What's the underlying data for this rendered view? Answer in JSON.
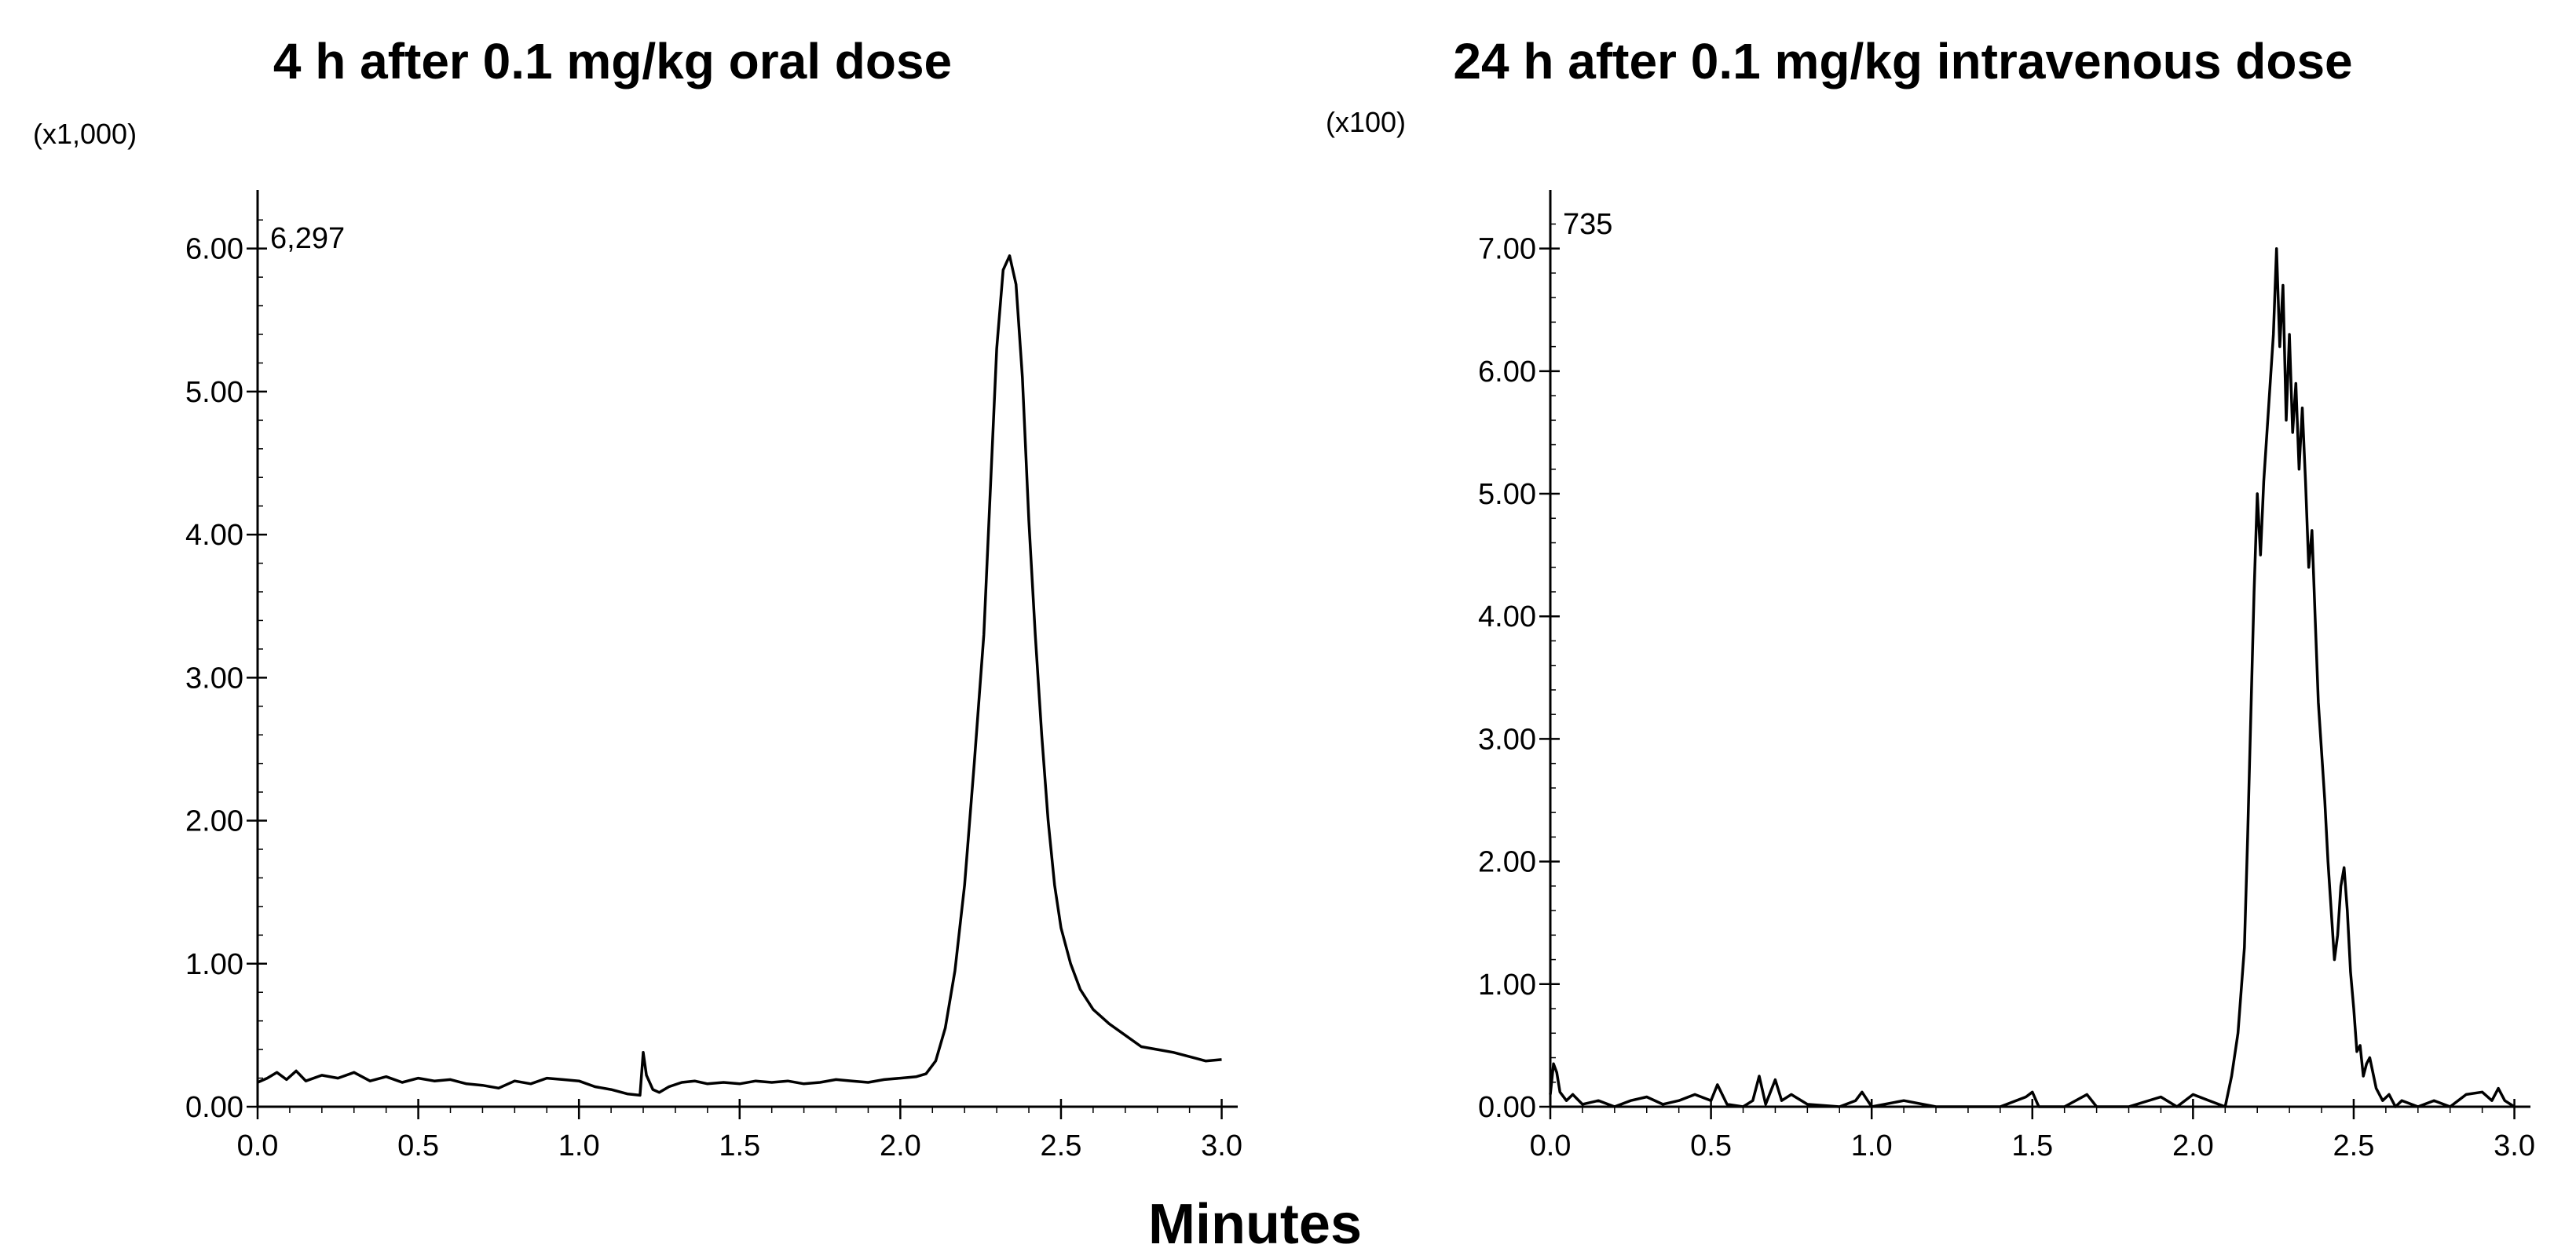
{
  "chart_data": [
    {
      "type": "line",
      "title": "4 h after 0.1 mg/kg oral dose",
      "scale_label": "(x1,000)",
      "peak_label": "6,297",
      "xlabel": "Minutes",
      "ylabel": "",
      "xlim": [
        0,
        3.05
      ],
      "ylim": [
        0,
        6.3
      ],
      "xticks": [
        "0.0",
        "0.5",
        "1.0",
        "1.5",
        "2.0",
        "2.5",
        "3.0"
      ],
      "yticks": [
        "0.00",
        "1.00",
        "2.00",
        "3.00",
        "4.00",
        "5.00",
        "6.00"
      ],
      "series": [
        {
          "name": "oral",
          "x": [
            0.0,
            0.03,
            0.06,
            0.09,
            0.12,
            0.15,
            0.2,
            0.25,
            0.3,
            0.35,
            0.4,
            0.45,
            0.5,
            0.55,
            0.6,
            0.65,
            0.7,
            0.75,
            0.8,
            0.85,
            0.9,
            0.95,
            1.0,
            1.05,
            1.1,
            1.15,
            1.19,
            1.2,
            1.21,
            1.23,
            1.25,
            1.28,
            1.32,
            1.36,
            1.4,
            1.45,
            1.5,
            1.55,
            1.6,
            1.65,
            1.7,
            1.75,
            1.8,
            1.85,
            1.9,
            1.95,
            2.0,
            2.05,
            2.08,
            2.11,
            2.14,
            2.17,
            2.2,
            2.23,
            2.26,
            2.28,
            2.3,
            2.32,
            2.34,
            2.36,
            2.38,
            2.4,
            2.42,
            2.44,
            2.46,
            2.48,
            2.5,
            2.53,
            2.56,
            2.6,
            2.65,
            2.7,
            2.75,
            2.8,
            2.85,
            2.9,
            2.95,
            3.0
          ],
          "values": [
            0.17,
            0.2,
            0.24,
            0.19,
            0.25,
            0.18,
            0.22,
            0.2,
            0.24,
            0.18,
            0.21,
            0.17,
            0.2,
            0.18,
            0.19,
            0.16,
            0.15,
            0.13,
            0.18,
            0.16,
            0.2,
            0.19,
            0.18,
            0.14,
            0.12,
            0.09,
            0.08,
            0.38,
            0.22,
            0.12,
            0.1,
            0.14,
            0.17,
            0.18,
            0.16,
            0.17,
            0.16,
            0.18,
            0.17,
            0.18,
            0.16,
            0.17,
            0.19,
            0.18,
            0.17,
            0.19,
            0.2,
            0.21,
            0.23,
            0.32,
            0.55,
            0.95,
            1.55,
            2.4,
            3.3,
            4.3,
            5.3,
            5.85,
            5.95,
            5.75,
            5.1,
            4.1,
            3.3,
            2.6,
            2.0,
            1.55,
            1.25,
            1.0,
            0.82,
            0.68,
            0.58,
            0.5,
            0.42,
            0.4,
            0.38,
            0.35,
            0.32,
            0.33
          ]
        }
      ]
    },
    {
      "type": "line",
      "title": "24 h after 0.1 mg/kg intravenous dose",
      "scale_label": "(x100)",
      "peak_label": "735",
      "xlabel": "Minutes",
      "ylabel": "",
      "xlim": [
        0,
        3.05
      ],
      "ylim": [
        0,
        7.35
      ],
      "xticks": [
        "0.0",
        "0.5",
        "1.0",
        "1.5",
        "2.0",
        "2.5",
        "3.0"
      ],
      "yticks": [
        "0.00",
        "1.00",
        "2.00",
        "3.00",
        "4.00",
        "5.00",
        "6.00",
        "7.00"
      ],
      "series": [
        {
          "name": "intravenous",
          "x": [
            0.0,
            0.01,
            0.02,
            0.03,
            0.05,
            0.07,
            0.1,
            0.15,
            0.2,
            0.25,
            0.3,
            0.35,
            0.4,
            0.45,
            0.5,
            0.52,
            0.55,
            0.6,
            0.63,
            0.65,
            0.67,
            0.7,
            0.72,
            0.75,
            0.8,
            0.9,
            0.95,
            0.97,
            1.0,
            1.1,
            1.2,
            1.4,
            1.48,
            1.5,
            1.52,
            1.6,
            1.67,
            1.7,
            1.8,
            1.9,
            1.95,
            2.0,
            2.05,
            2.1,
            2.12,
            2.14,
            2.16,
            2.17,
            2.18,
            2.19,
            2.2,
            2.21,
            2.22,
            2.23,
            2.24,
            2.25,
            2.26,
            2.27,
            2.28,
            2.29,
            2.3,
            2.31,
            2.32,
            2.33,
            2.34,
            2.35,
            2.36,
            2.37,
            2.38,
            2.39,
            2.4,
            2.41,
            2.42,
            2.43,
            2.44,
            2.45,
            2.46,
            2.47,
            2.48,
            2.49,
            2.5,
            2.51,
            2.52,
            2.53,
            2.54,
            2.55,
            2.57,
            2.59,
            2.61,
            2.63,
            2.65,
            2.7,
            2.75,
            2.8,
            2.85,
            2.9,
            2.93,
            2.95,
            2.97,
            3.0
          ],
          "values": [
            0.1,
            0.35,
            0.28,
            0.12,
            0.05,
            0.1,
            0.02,
            0.05,
            0.0,
            0.05,
            0.08,
            0.02,
            0.05,
            0.1,
            0.05,
            0.18,
            0.02,
            0.0,
            0.05,
            0.25,
            0.02,
            0.22,
            0.05,
            0.1,
            0.02,
            0.0,
            0.05,
            0.12,
            0.0,
            0.05,
            0.0,
            0.0,
            0.08,
            0.12,
            0.0,
            0.0,
            0.1,
            0.0,
            0.0,
            0.08,
            0.0,
            0.1,
            0.05,
            0.0,
            0.25,
            0.6,
            1.3,
            2.2,
            3.2,
            4.2,
            5.0,
            4.5,
            5.1,
            5.5,
            5.9,
            6.3,
            7.0,
            6.2,
            6.7,
            5.6,
            6.3,
            5.5,
            5.9,
            5.2,
            5.7,
            5.1,
            4.4,
            4.7,
            4.0,
            3.3,
            2.9,
            2.5,
            2.0,
            1.6,
            1.2,
            1.4,
            1.8,
            1.95,
            1.6,
            1.1,
            0.8,
            0.45,
            0.5,
            0.25,
            0.35,
            0.4,
            0.15,
            0.05,
            0.1,
            0.0,
            0.05,
            0.0,
            0.05,
            0.0,
            0.1,
            0.12,
            0.05,
            0.15,
            0.05,
            0.0
          ]
        }
      ]
    }
  ],
  "shared_xlabel": "Minutes"
}
